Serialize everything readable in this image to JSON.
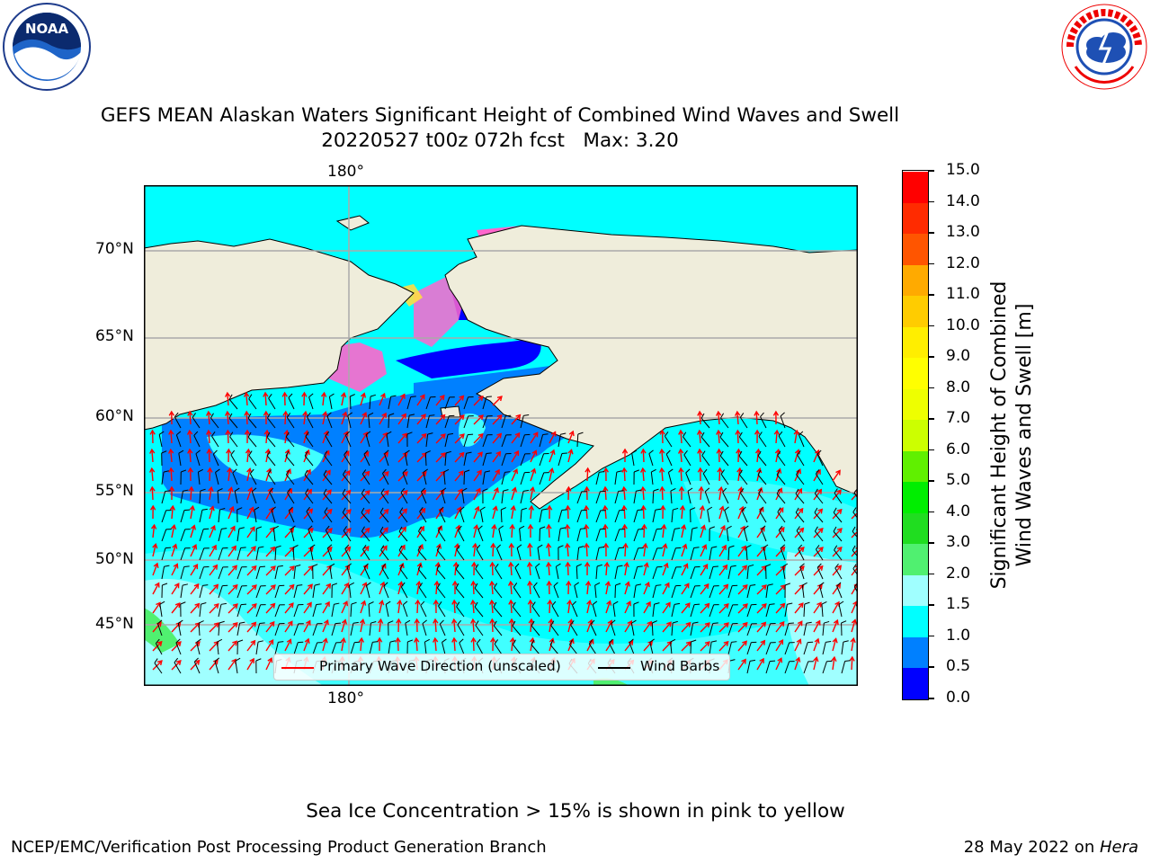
{
  "title_line1": "GEFS MEAN Alaskan Waters Significant Height of Combined Wind Waves and Swell",
  "title_line2": "20220527 t00z 072h fcst   Max: 3.20",
  "logos": {
    "left": "noaa-logo",
    "right": "nws-logo"
  },
  "map": {
    "lon_label": "180°",
    "lat_labels": [
      "70°N",
      "65°N",
      "60°N",
      "55°N",
      "50°N",
      "45°N"
    ],
    "legend": {
      "wave_dir": "Primary Wave Direction (unscaled)",
      "wind_barbs": "Wind Barbs"
    },
    "colors": {
      "land": "#efeddb",
      "wave_arrow": "#ff0000",
      "barb": "#000000"
    }
  },
  "colorbar": {
    "label": "Significant Height of Combined\nWind Waves and Swell [m]",
    "ticks": [
      "15.0",
      "14.0",
      "13.0",
      "12.0",
      "11.0",
      "10.0",
      "9.0",
      "8.0",
      "7.0",
      "6.0",
      "5.0",
      "4.0",
      "3.0",
      "2.0",
      "1.5",
      "1.0",
      "0.5",
      "0.0"
    ],
    "colors": [
      "#0000ff",
      "#0080ff",
      "#00ffff",
      "#40ffff",
      "#a0ffff",
      "#50f070",
      "#20dd20",
      "#00ee00",
      "#60f000",
      "#a0f000",
      "#ccff00",
      "#eeff00",
      "#ffff00",
      "#ffee00",
      "#ffcc00",
      "#ffaa00",
      "#ff7f00",
      "#ff5500",
      "#ff2b00",
      "#ff0000"
    ]
  },
  "note": "Sea Ice Concentration > 15% is shown in pink to yellow",
  "footer_left": "NCEP/EMC/Verification Post Processing Product Generation Branch",
  "footer_right_date": "28 May 2022 on ",
  "footer_right_machine": "Hera"
}
